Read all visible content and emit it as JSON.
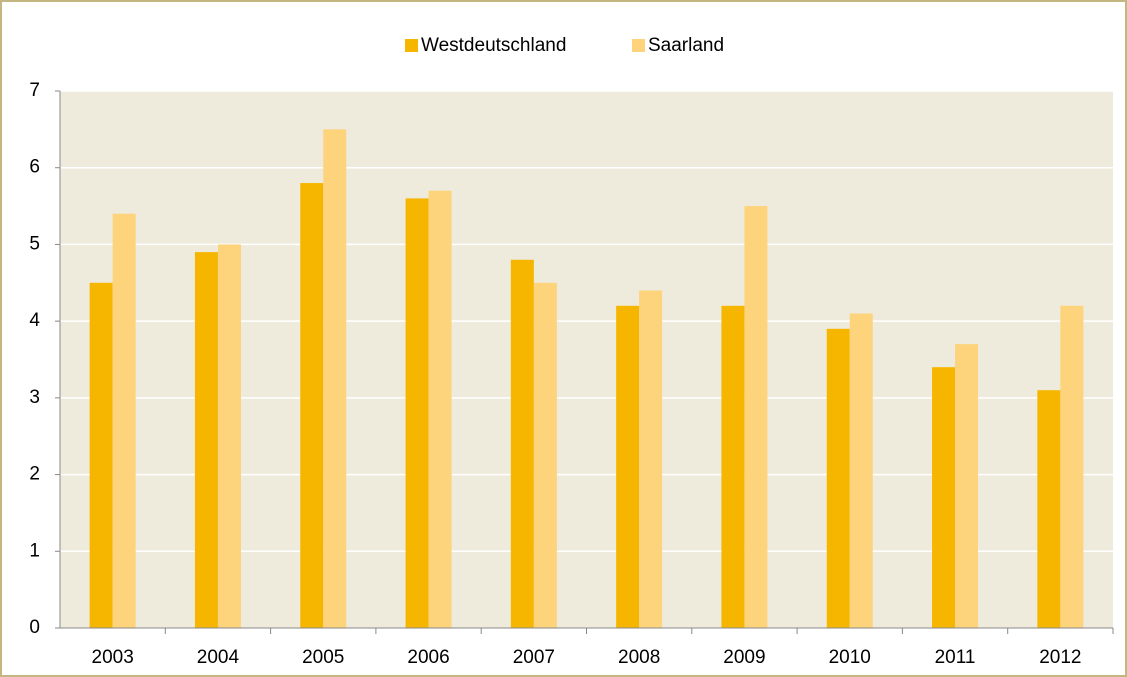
{
  "chart_data": {
    "type": "bar",
    "categories": [
      "2003",
      "2004",
      "2005",
      "2006",
      "2007",
      "2008",
      "2009",
      "2010",
      "2011",
      "2012"
    ],
    "series": [
      {
        "name": "Westdeutschland",
        "color": "#f6b600",
        "values": [
          4.5,
          4.9,
          5.8,
          5.6,
          4.8,
          4.2,
          4.2,
          3.9,
          3.4,
          3.1
        ]
      },
      {
        "name": "Saarland",
        "color": "#fdd37c",
        "values": [
          5.4,
          5.0,
          6.5,
          5.7,
          4.5,
          4.4,
          5.5,
          4.1,
          3.7,
          4.2
        ]
      }
    ],
    "ylim": [
      0,
      7
    ],
    "yticks": [
      0,
      1,
      2,
      3,
      4,
      5,
      6,
      7
    ],
    "grid": true,
    "legend": "top"
  }
}
